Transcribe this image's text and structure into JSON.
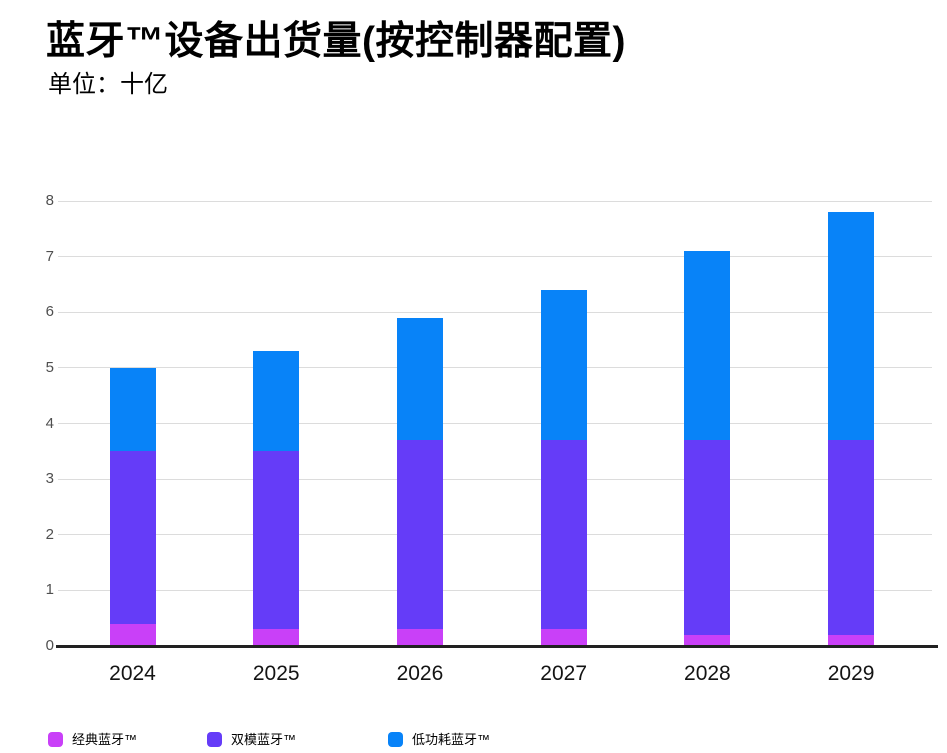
{
  "page": {
    "title": "蓝牙™设备出货量(按控制器配置)",
    "subtitle": "单位：十亿"
  },
  "chart_data": {
    "type": "bar",
    "stacked": true,
    "title": "蓝牙™设备出货量(按控制器配置)",
    "unit_label": "单位：十亿",
    "categories": [
      "2024",
      "2025",
      "2026",
      "2027",
      "2028",
      "2029"
    ],
    "series": [
      {
        "name": "经典蓝牙™",
        "color": "#c940f8",
        "values": [
          0.4,
          0.3,
          0.3,
          0.3,
          0.2,
          0.2
        ]
      },
      {
        "name": "双模蓝牙™",
        "color": "#653cf8",
        "values": [
          3.1,
          3.2,
          3.4,
          3.4,
          3.5,
          3.5
        ]
      },
      {
        "name": "低功耗蓝牙™",
        "color": "#0883f8",
        "values": [
          1.5,
          1.8,
          2.2,
          2.7,
          3.4,
          4.1
        ]
      }
    ],
    "totals": [
      5.0,
      5.3,
      5.9,
      6.4,
      7.1,
      7.8
    ],
    "xlabel": "",
    "ylabel": "",
    "ylim": [
      0,
      8
    ],
    "yticks": [
      0,
      1,
      2,
      3,
      4,
      5,
      6,
      7,
      8
    ],
    "grid": true,
    "legend_position": "bottom",
    "style": {
      "grid_color": "#dcdcdc",
      "axis_color": "#212121",
      "ytick_color": "#4f4f4f",
      "xtick_color": "#141414"
    }
  }
}
